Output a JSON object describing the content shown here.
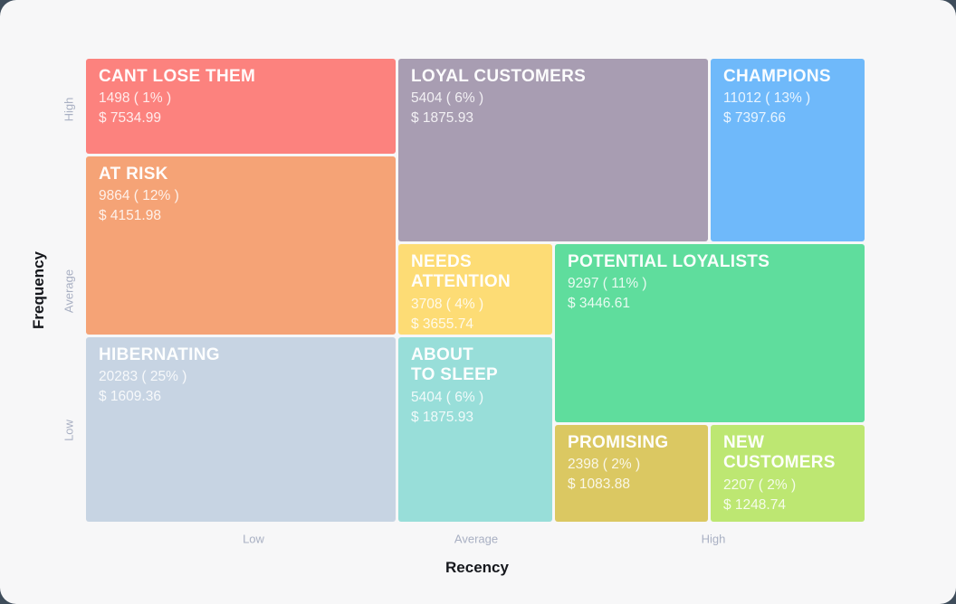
{
  "colors": {
    "page_background": "#3F4D5B",
    "card_background": "#F7F7F8",
    "axis_label": "#16181D",
    "tick_label": "#A9B0C3"
  },
  "chart_data": {
    "type": "treemap",
    "title": "",
    "xlabel": "Recency",
    "ylabel": "Frequency",
    "x_ticks": [
      "Low",
      "Average",
      "High"
    ],
    "y_ticks": [
      "High",
      "Average",
      "Low"
    ],
    "legend": "none",
    "segments": [
      {
        "name": "CANT LOSE THEM",
        "display_name": "CANT LOSE THEM",
        "count": 1498,
        "percent": 1,
        "monetary": 7534.99,
        "count_label": "1498 ( 1% )",
        "monetary_label": "$ 7534.99",
        "color": "#FC827E",
        "frequency": "High",
        "recency": "Low"
      },
      {
        "name": "LOYAL CUSTOMERS",
        "display_name": "LOYAL CUSTOMERS",
        "count": 5404,
        "percent": 6,
        "monetary": 1875.93,
        "count_label": "5404 ( 6% )",
        "monetary_label": "$ 1875.93",
        "color": "#A89DB2",
        "frequency": "High",
        "recency": "Average"
      },
      {
        "name": "CHAMPIONS",
        "display_name": "CHAMPIONS",
        "count": 11012,
        "percent": 13,
        "monetary": 7397.66,
        "count_label": "11012 ( 13% )",
        "monetary_label": "$ 7397.66",
        "color": "#6FB9FA",
        "frequency": "High",
        "recency": "High"
      },
      {
        "name": "AT RISK",
        "display_name": "AT RISK",
        "count": 9864,
        "percent": 12,
        "monetary": 4151.98,
        "count_label": "9864 ( 12% )",
        "monetary_label": "$ 4151.98",
        "color": "#F5A376",
        "frequency": "Average",
        "recency": "Low"
      },
      {
        "name": "NEEDS ATTENTION",
        "display_name": "NEEDS\nATTENTION",
        "count": 3708,
        "percent": 4,
        "monetary": 3655.74,
        "count_label": "3708 ( 4% )",
        "monetary_label": "$ 3655.74",
        "color": "#FDDC75",
        "frequency": "Average",
        "recency": "Average"
      },
      {
        "name": "POTENTIAL LOYALISTS",
        "display_name": "POTENTIAL LOYALISTS",
        "count": 9297,
        "percent": 11,
        "monetary": 3446.61,
        "count_label": "9297 ( 11% )",
        "monetary_label": "$ 3446.61",
        "color": "#5FDD9D",
        "frequency": "Average",
        "recency": "High"
      },
      {
        "name": "HIBERNATING",
        "display_name": "HIBERNATING",
        "count": 20283,
        "percent": 25,
        "monetary": 1609.36,
        "count_label": "20283 ( 25% )",
        "monetary_label": "$ 1609.36",
        "color": "#C7D4E3",
        "frequency": "Low",
        "recency": "Low"
      },
      {
        "name": "ABOUT TO SLEEP",
        "display_name": "ABOUT\nTO SLEEP",
        "count": 5404,
        "percent": 6,
        "monetary": 1875.93,
        "count_label": "5404 ( 6% )",
        "monetary_label": "$ 1875.93",
        "color": "#98DED9",
        "frequency": "Low",
        "recency": "Average"
      },
      {
        "name": "PROMISING",
        "display_name": "PROMISING",
        "count": 2398,
        "percent": 2,
        "monetary": 1083.88,
        "count_label": "2398 ( 2% )",
        "monetary_label": "$ 1083.88",
        "color": "#DBC862",
        "frequency": "Low",
        "recency": "High"
      },
      {
        "name": "NEW CUSTOMERS",
        "display_name": "NEW\nCUSTOMERS",
        "count": 2207,
        "percent": 2,
        "monetary": 1248.74,
        "count_label": "2207 ( 2% )",
        "monetary_label": "$ 1248.74",
        "color": "#BDE772",
        "frequency": "Low",
        "recency": "High"
      }
    ]
  }
}
